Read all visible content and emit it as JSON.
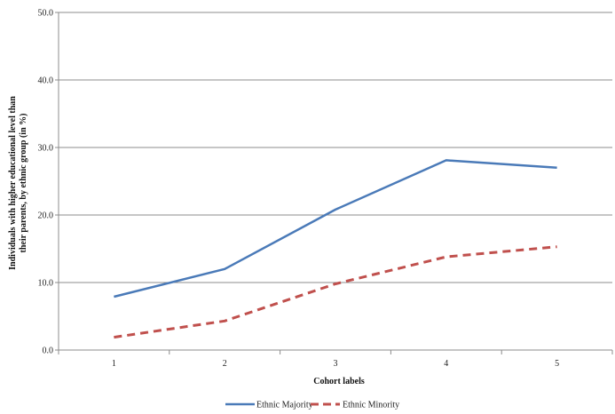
{
  "chart_data": {
    "type": "line",
    "title": "",
    "xlabel": "Cohort labels",
    "ylabel_lines": [
      "Individuals with higher educational level than",
      "their parents, by ethnic group (in %)"
    ],
    "categories": [
      "1",
      "2",
      "3",
      "4",
      "5"
    ],
    "ylim": [
      0,
      50
    ],
    "yticks": [
      "0.0",
      "10.0",
      "20.0",
      "30.0",
      "40.0",
      "50.0"
    ],
    "grid": true,
    "legend_position": "bottom",
    "series": [
      {
        "name": "Ethnic Majority",
        "values": [
          7.9,
          12.0,
          20.8,
          28.1,
          27.0
        ],
        "color": "#4a7ab8",
        "dash": "solid"
      },
      {
        "name": "Ethnic Minority",
        "values": [
          1.9,
          4.3,
          9.8,
          13.8,
          15.3
        ],
        "color": "#c0504d",
        "dash": "dashed"
      }
    ]
  }
}
